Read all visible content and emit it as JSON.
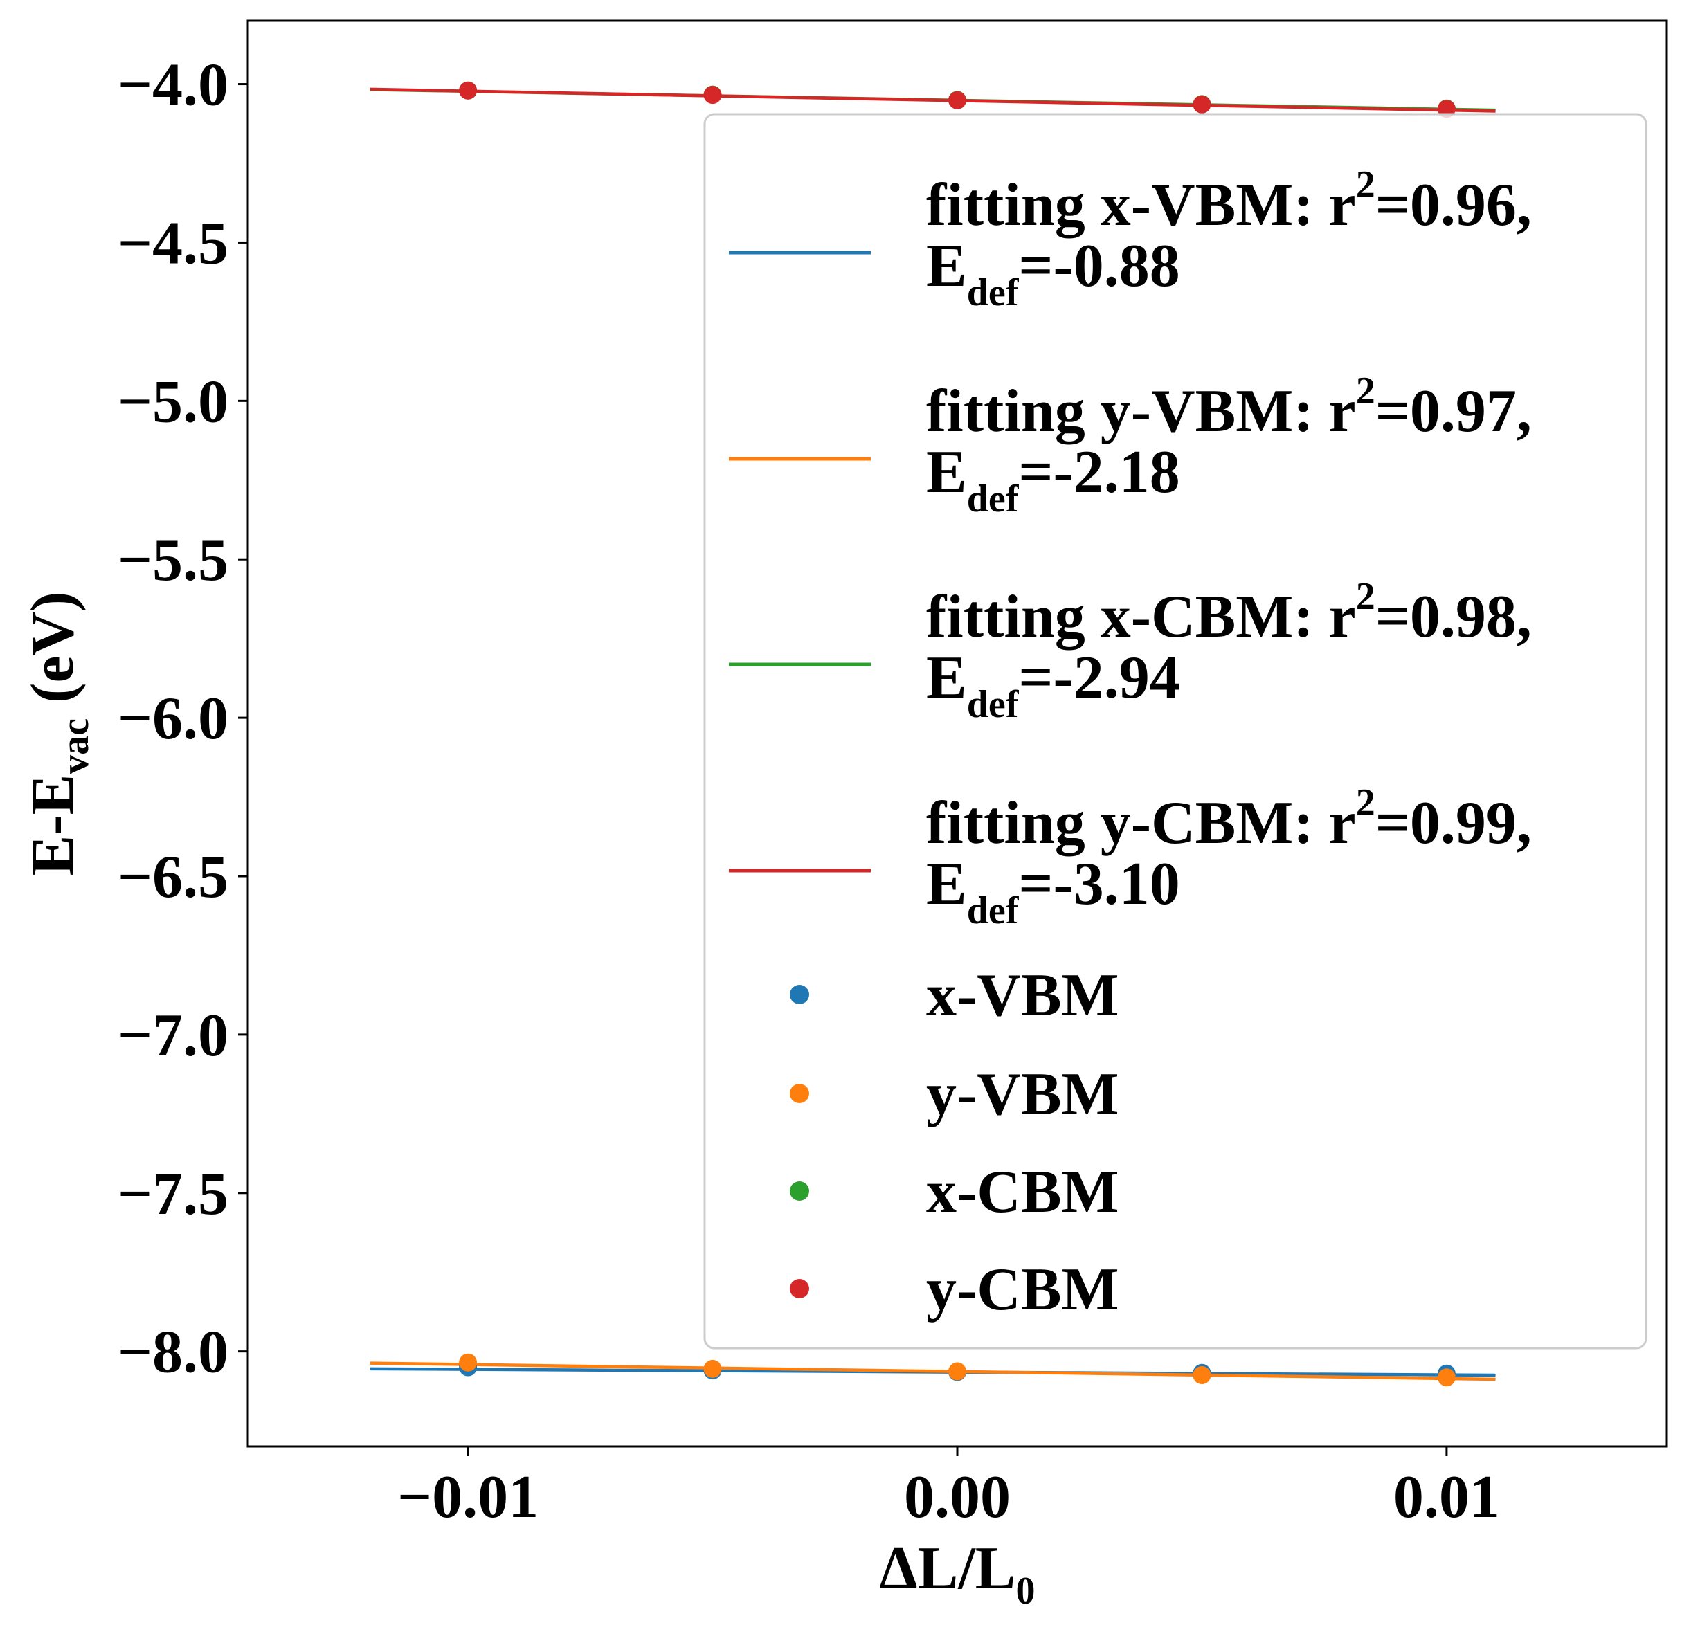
{
  "chart_data": {
    "type": "scatter",
    "xlabel": {
      "main": "ΔL/L",
      "sub": "0"
    },
    "ylabel": {
      "main": "E-E",
      "sub": "vac",
      "unit": " (eV)"
    },
    "xlim": [
      -0.0145,
      0.0145
    ],
    "ylim": [
      -8.3,
      -3.8
    ],
    "xticks": [
      -0.01,
      0.0,
      0.01
    ],
    "xtick_labels": [
      "−0.01",
      "0.00",
      "0.01"
    ],
    "yticks": [
      -4.0,
      -4.5,
      -5.0,
      -5.5,
      -6.0,
      -6.5,
      -7.0,
      -7.5,
      -8.0
    ],
    "ytick_labels": [
      "−4.0",
      "−4.5",
      "−5.0",
      "−5.5",
      "−6.0",
      "−6.5",
      "−7.0",
      "−7.5",
      "−8.0"
    ],
    "grid": false,
    "legend_position": "upper-right",
    "fits": [
      {
        "name": "fitting x-VBM",
        "r2": "=0.96,",
        "edef": "=-0.88",
        "color": "#1f77b4",
        "x": [
          -0.012,
          0.011
        ],
        "y": [
          -8.055,
          -8.075
        ]
      },
      {
        "name": "fitting y-VBM",
        "r2": "=0.97,",
        "edef": "=-2.18",
        "color": "#ff7f0e",
        "x": [
          -0.012,
          0.011
        ],
        "y": [
          -8.037,
          -8.088
        ]
      },
      {
        "name": "fitting x-CBM",
        "r2": "=0.98,",
        "edef": "=-2.94",
        "color": "#2ca02c",
        "x": [
          -0.012,
          0.011
        ],
        "y": [
          -4.017,
          -4.082
        ]
      },
      {
        "name": "fitting y-CBM",
        "r2": "=0.99,",
        "edef": "=-3.10",
        "color": "#d62728",
        "x": [
          -0.012,
          0.011
        ],
        "y": [
          -4.016,
          -4.085
        ]
      }
    ],
    "series": [
      {
        "name": "x-VBM",
        "color": "#1f77b4",
        "x": [
          -0.01,
          -0.005,
          0.0,
          0.005,
          0.01
        ],
        "y": [
          -8.05,
          -8.06,
          -8.065,
          -8.068,
          -8.07
        ]
      },
      {
        "name": "y-VBM",
        "color": "#ff7f0e",
        "x": [
          -0.01,
          -0.005,
          0.0,
          0.005,
          0.01
        ],
        "y": [
          -8.035,
          -8.055,
          -8.063,
          -8.075,
          -8.082
        ]
      },
      {
        "name": "x-CBM",
        "color": "#2ca02c",
        "x": [
          -0.01,
          -0.005,
          0.0,
          0.005,
          0.01
        ],
        "y": [
          -4.02,
          -4.033,
          -4.05,
          -4.063,
          -4.077
        ]
      },
      {
        "name": "y-CBM",
        "color": "#d62728",
        "x": [
          -0.01,
          -0.005,
          0.0,
          0.005,
          0.01
        ],
        "y": [
          -4.02,
          -4.034,
          -4.051,
          -4.064,
          -4.078
        ]
      }
    ],
    "legend_r2_prefix": ": r",
    "legend_r2_sup": "2",
    "legend_edef_main": "E",
    "legend_edef_sub": "def"
  }
}
